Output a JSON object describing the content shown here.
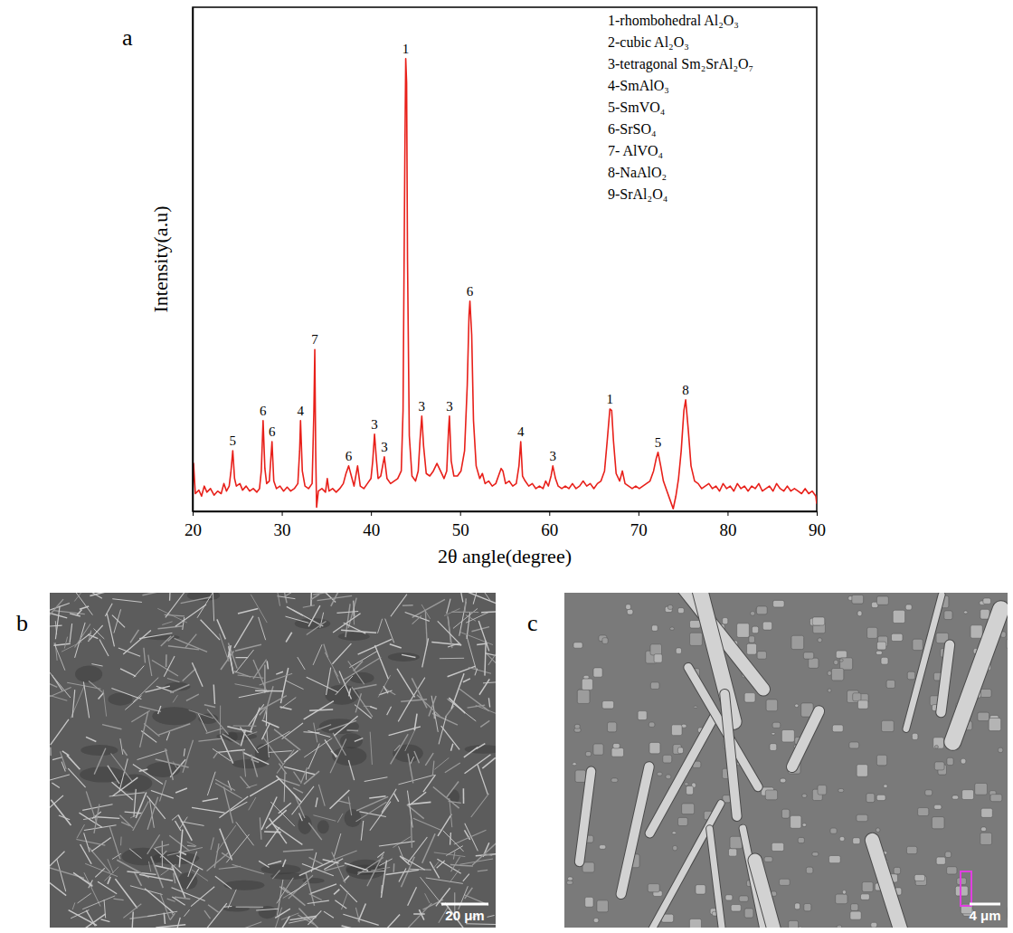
{
  "chart_data": {
    "type": "line",
    "panel_label": "a",
    "x_label": "2θ angle(degree)",
    "y_label": "Intensity(a.u)",
    "color": "#e8201a",
    "tick_labels": "x",
    "xlim": [
      20,
      90
    ],
    "xticks": [
      20,
      30,
      40,
      50,
      60,
      70,
      80,
      90
    ],
    "ylim": [
      0,
      100
    ],
    "phase_list": [
      "1-rhombohedral Al₂O₃",
      "2-cubic Al₂O₃",
      "3-tetragonal Sm₂SrAl₂O₇",
      "4-SmAlO₃",
      "5-SmVO₄",
      "6-SrSO₄",
      "7- AlVO₄",
      "8-NaAlO₂",
      "9-SrAl₂O₄"
    ],
    "annotations": [
      {
        "text": "5",
        "x": 24.5,
        "y": 12.0
      },
      {
        "text": "6",
        "x": 27.9,
        "y": 18.0
      },
      {
        "text": "6",
        "x": 28.9,
        "y": 13.8
      },
      {
        "text": "4",
        "x": 32.1,
        "y": 18.0
      },
      {
        "text": "7",
        "x": 33.7,
        "y": 32.1
      },
      {
        "text": "6",
        "x": 37.5,
        "y": 9.0
      },
      {
        "text": "3",
        "x": 40.4,
        "y": 15.3
      },
      {
        "text": "3",
        "x": 41.5,
        "y": 10.8
      },
      {
        "text": "1",
        "x": 43.9,
        "y": 89.8
      },
      {
        "text": "3",
        "x": 45.7,
        "y": 18.9
      },
      {
        "text": "3",
        "x": 48.8,
        "y": 18.9
      },
      {
        "text": "6",
        "x": 51.1,
        "y": 41.7
      },
      {
        "text": "4",
        "x": 56.8,
        "y": 13.8
      },
      {
        "text": "3",
        "x": 60.4,
        "y": 9.0
      },
      {
        "text": "1",
        "x": 66.8,
        "y": 20.3
      },
      {
        "text": "5",
        "x": 72.2,
        "y": 11.7
      },
      {
        "text": "8",
        "x": 75.3,
        "y": 22.1
      }
    ],
    "x": [
      20.0,
      20.1,
      20.3,
      20.7,
      21.0,
      21.3,
      21.6,
      22.0,
      22.4,
      22.8,
      23.2,
      23.5,
      23.8,
      24.1,
      24.3,
      24.5,
      24.7,
      24.9,
      25.3,
      25.6,
      26.0,
      26.4,
      26.8,
      27.2,
      27.5,
      27.7,
      27.9,
      28.1,
      28.3,
      28.6,
      28.9,
      29.1,
      29.4,
      29.8,
      30.2,
      30.6,
      31.0,
      31.4,
      31.8,
      32.0,
      32.1,
      32.3,
      32.6,
      33.0,
      33.4,
      33.6,
      33.7,
      33.8,
      33.9,
      34.1,
      34.5,
      34.9,
      35.1,
      35.3,
      35.7,
      36.1,
      36.5,
      36.9,
      37.2,
      37.5,
      37.8,
      38.1,
      38.5,
      38.8,
      39.2,
      39.6,
      40.0,
      40.2,
      40.4,
      40.6,
      40.8,
      41.1,
      41.5,
      41.8,
      42.2,
      42.6,
      43.0,
      43.4,
      43.6,
      43.8,
      43.9,
      44.0,
      44.1,
      44.3,
      44.6,
      45.0,
      45.3,
      45.5,
      45.7,
      45.9,
      46.2,
      46.6,
      47.0,
      47.4,
      47.8,
      48.2,
      48.5,
      48.7,
      48.8,
      49.0,
      49.3,
      49.7,
      50.1,
      50.5,
      50.8,
      51.0,
      51.1,
      51.3,
      51.5,
      51.8,
      52.2,
      52.5,
      52.8,
      53.2,
      53.6,
      54.0,
      54.4,
      54.6,
      54.8,
      55.1,
      55.5,
      55.9,
      56.3,
      56.6,
      56.8,
      57.0,
      57.3,
      57.7,
      58.1,
      58.5,
      58.9,
      59.3,
      59.6,
      59.9,
      60.2,
      60.4,
      60.7,
      61.0,
      61.4,
      61.8,
      62.2,
      62.6,
      63.0,
      63.4,
      63.8,
      64.2,
      64.6,
      65.0,
      65.4,
      65.8,
      66.2,
      66.5,
      66.8,
      67.0,
      67.2,
      67.5,
      67.9,
      68.2,
      68.5,
      68.9,
      69.3,
      69.7,
      70.1,
      70.5,
      70.9,
      71.3,
      71.7,
      72.0,
      72.2,
      72.5,
      72.8,
      73.2,
      73.6,
      73.9,
      74.2,
      74.5,
      74.8,
      75.1,
      75.3,
      75.6,
      75.9,
      76.3,
      76.7,
      77.1,
      77.5,
      77.9,
      78.3,
      78.7,
      79.1,
      79.5,
      79.9,
      80.3,
      80.7,
      81.1,
      81.5,
      81.9,
      82.3,
      82.7,
      83.1,
      83.5,
      83.9,
      84.3,
      84.7,
      85.1,
      85.5,
      85.9,
      86.3,
      86.7,
      87.1,
      87.5,
      87.9,
      88.3,
      88.7,
      89.1,
      89.5,
      89.9,
      90.0
    ],
    "values": [
      3.0,
      9.5,
      3.5,
      4.2,
      3.0,
      5.0,
      3.8,
      4.5,
      3.2,
      4.0,
      3.5,
      5.5,
      4.0,
      5.0,
      8.0,
      12.0,
      6.5,
      5.0,
      5.5,
      4.2,
      5.0,
      4.0,
      4.5,
      3.8,
      4.5,
      8.0,
      18.0,
      8.5,
      5.5,
      6.0,
      13.8,
      6.0,
      4.5,
      5.0,
      4.0,
      4.8,
      4.0,
      4.5,
      5.5,
      12.0,
      18.0,
      8.0,
      5.0,
      4.5,
      5.5,
      20.0,
      32.1,
      12.0,
      0.8,
      4.0,
      4.5,
      3.8,
      6.5,
      4.0,
      4.5,
      3.8,
      4.5,
      5.5,
      7.5,
      9.0,
      7.0,
      5.0,
      9.0,
      5.0,
      4.5,
      5.5,
      6.5,
      10.0,
      15.3,
      10.5,
      6.5,
      7.0,
      10.8,
      6.5,
      5.5,
      6.0,
      6.5,
      8.0,
      20.0,
      70.0,
      89.8,
      85.0,
      50.0,
      15.0,
      7.0,
      6.0,
      8.0,
      14.0,
      18.9,
      13.0,
      7.5,
      7.0,
      8.0,
      9.5,
      8.0,
      6.5,
      8.0,
      16.0,
      18.9,
      10.0,
      7.0,
      7.0,
      8.0,
      12.0,
      25.0,
      39.0,
      41.7,
      35.0,
      18.0,
      9.0,
      6.5,
      7.5,
      5.5,
      6.0,
      5.0,
      5.5,
      7.5,
      8.5,
      8.0,
      5.5,
      6.0,
      5.0,
      5.5,
      9.0,
      13.8,
      7.0,
      6.0,
      5.0,
      5.5,
      4.5,
      5.0,
      4.5,
      6.0,
      5.0,
      7.0,
      9.0,
      6.5,
      5.0,
      4.5,
      5.0,
      4.5,
      5.5,
      4.5,
      5.0,
      6.0,
      5.0,
      5.5,
      4.5,
      5.5,
      6.0,
      8.0,
      14.0,
      20.3,
      20.0,
      14.0,
      7.5,
      6.0,
      8.0,
      5.5,
      5.0,
      4.5,
      5.0,
      4.5,
      5.0,
      5.5,
      6.0,
      8.0,
      10.5,
      11.7,
      9.0,
      6.0,
      4.0,
      2.0,
      0.5,
      3.0,
      6.5,
      12.0,
      20.0,
      22.1,
      16.0,
      9.0,
      6.0,
      5.5,
      4.5,
      5.0,
      5.5,
      4.5,
      5.0,
      4.0,
      5.5,
      4.5,
      5.0,
      4.0,
      5.5,
      4.5,
      5.0,
      4.0,
      5.0,
      4.5,
      5.5,
      4.0,
      4.5,
      5.0,
      4.0,
      5.5,
      4.5,
      4.0,
      5.0,
      4.0,
      4.5,
      4.0,
      3.5,
      4.5,
      3.5,
      4.0,
      3.0,
      1.5
    ]
  },
  "images": [
    {
      "panel_label": "b",
      "scale_bar": "20 μm"
    },
    {
      "panel_label": "c",
      "scale_bar": "4 μm"
    }
  ]
}
